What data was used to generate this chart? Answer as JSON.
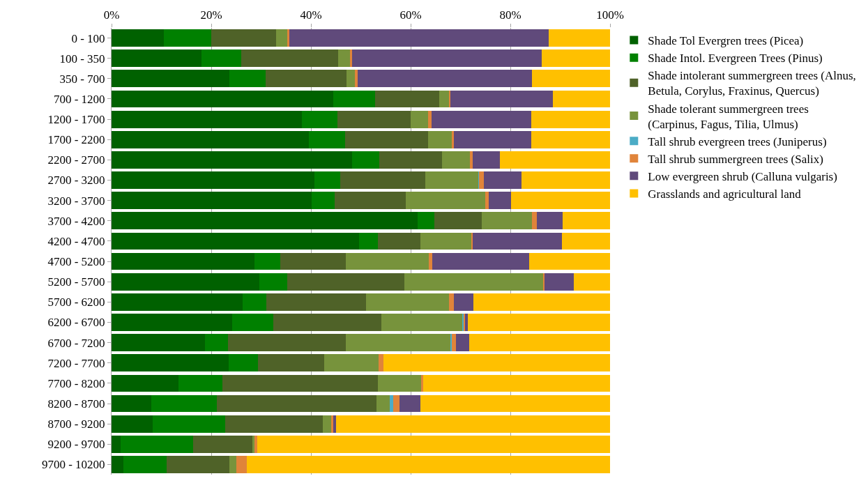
{
  "chart_data": {
    "type": "bar",
    "orientation": "horizontal",
    "stacked": true,
    "grid": "x",
    "legend": "right",
    "xlim": [
      0,
      100
    ],
    "xticks": [
      {
        "value": 0,
        "label": "0%"
      },
      {
        "value": 20,
        "label": "20%"
      },
      {
        "value": 40,
        "label": "40%"
      },
      {
        "value": 60,
        "label": "60%"
      },
      {
        "value": 80,
        "label": "80%"
      },
      {
        "value": 100,
        "label": "100%"
      }
    ],
    "categories": [
      "0 - 100",
      "100 - 350",
      "350 - 700",
      "700 - 1200",
      "1200 - 1700",
      "1700 - 2200",
      "2200 - 2700",
      "2700 - 3200",
      "3200 - 3700",
      "3700 - 4200",
      "4200 - 4700",
      "4700 - 5200",
      "5200 - 5700",
      "5700 - 6200",
      "6200 - 6700",
      "6700 - 7200",
      "7200 - 7700",
      "7700 - 8200",
      "8200 - 8700",
      "8700 - 9200",
      "9200 - 9700",
      "9700 - 10200"
    ],
    "series": [
      {
        "name": "Shade Tol Evergren trees (Picea)",
        "color": "#006100",
        "values": [
          10.5,
          18.1,
          23.7,
          44.5,
          38.2,
          39.6,
          48.2,
          40.7,
          40.2,
          61.4,
          49.6,
          28.7,
          29.6,
          26.3,
          24.2,
          18.8,
          23.5,
          13.4,
          8.0,
          8.3,
          1.8,
          2.4
        ]
      },
      {
        "name": "Shade Intol. Evergreen Trees (Pinus)",
        "color": "#008000",
        "values": [
          9.5,
          7.9,
          7.2,
          8.4,
          7.1,
          7.2,
          5.5,
          5.2,
          4.5,
          3.3,
          3.8,
          5.1,
          5.6,
          4.7,
          8.2,
          4.5,
          5.9,
          8.9,
          13.1,
          14.5,
          14.6,
          8.6
        ]
      },
      {
        "name": "Shade intolerant summergreen trees (Alnus,\nBetula, Corylus, Fraxinus, Quercus)",
        "color": "#4f6228",
        "values": [
          13.0,
          19.5,
          16.3,
          12.9,
          14.7,
          16.7,
          12.6,
          17.0,
          14.3,
          9.6,
          8.6,
          13.2,
          23.5,
          20.0,
          21.7,
          23.7,
          13.2,
          31.1,
          32.1,
          19.6,
          11.9,
          12.7
        ]
      },
      {
        "name": "Shade tolerant summergreen trees\n(Carpinus, Fagus, Tilia, Ulmus)",
        "color": "#77933c",
        "values": [
          2.2,
          2.4,
          1.6,
          1.9,
          3.5,
          4.7,
          5.6,
          10.7,
          16.0,
          10.1,
          10.3,
          16.7,
          28.0,
          16.7,
          16.3,
          21.1,
          11.0,
          8.7,
          2.6,
          1.7,
          0.4,
          1.4
        ]
      },
      {
        "name": "Tall shrub evergreen trees (Juniperus)",
        "color": "#4bacc6",
        "values": [
          0,
          0,
          0,
          0,
          0,
          0,
          0,
          0.1,
          0,
          0,
          0,
          0,
          0,
          0,
          0.2,
          0.1,
          0,
          0,
          0.7,
          0,
          0,
          0
        ]
      },
      {
        "name": "Tall shrub summergreen trees (Salix)",
        "color": "#e0843a",
        "values": [
          0.5,
          0.3,
          0.6,
          0.3,
          0.7,
          0.5,
          0.6,
          1.0,
          0.7,
          0.9,
          0.2,
          0.6,
          0.1,
          1.0,
          0.3,
          0.9,
          1.0,
          0.4,
          1.3,
          0.4,
          0.5,
          2.0
        ]
      },
      {
        "name": "Low evergreen shrub (Calluna vulgaris)",
        "color": "#604a7b",
        "values": [
          52.0,
          38.1,
          35.0,
          20.6,
          20.0,
          15.5,
          5.4,
          7.6,
          4.5,
          5.2,
          17.8,
          19.5,
          5.9,
          3.9,
          0.6,
          2.7,
          0,
          0,
          4.2,
          0.6,
          0,
          0
        ]
      },
      {
        "name": "Grasslands and agricultural land",
        "color": "#ffc000",
        "values": [
          12.3,
          13.7,
          15.6,
          11.4,
          15.8,
          15.8,
          22.1,
          17.7,
          19.8,
          9.5,
          9.7,
          16.2,
          7.3,
          27.4,
          28.5,
          28.2,
          45.4,
          37.5,
          38.0,
          54.9,
          70.8,
          72.9
        ]
      }
    ]
  }
}
